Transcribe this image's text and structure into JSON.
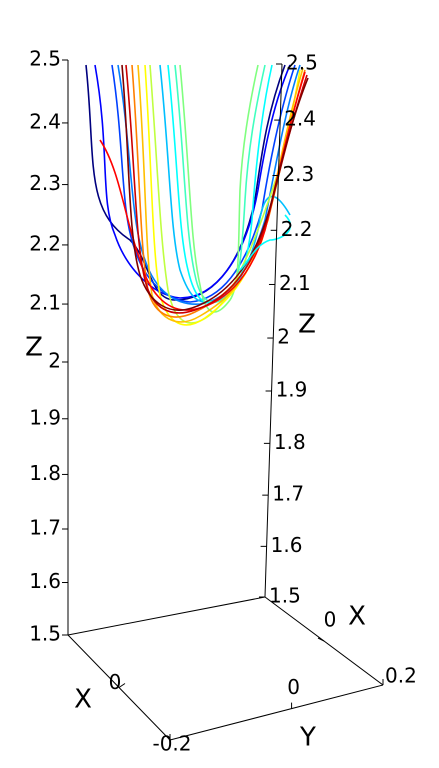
{
  "chart_data": {
    "type": "3d-line",
    "xlabel": "X",
    "ylabel": "Y",
    "zlabel": "Z",
    "xlim": [
      -0.2,
      0.2
    ],
    "xticks": [
      0
    ],
    "ylim": [
      -0.2,
      0.2
    ],
    "yticks": [
      -0.2,
      0,
      0.2
    ],
    "zlim": [
      1.5,
      2.5
    ],
    "zticks": [
      1.5,
      1.6,
      1.7,
      1.8,
      1.9,
      2,
      2.1,
      2.2,
      2.3,
      2.4,
      2.5
    ]
  }
}
